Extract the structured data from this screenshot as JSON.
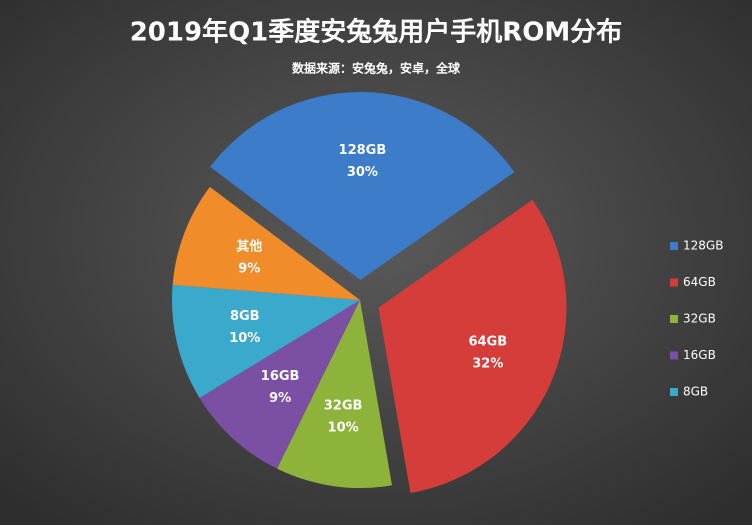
{
  "chart_data": {
    "type": "pie",
    "title": "2019年Q1季度安兔兔用户手机ROM分布",
    "subtitle": "数据来源：安兔兔，安卓，全球",
    "categories": [
      "128GB",
      "64GB",
      "32GB",
      "16GB",
      "8GB",
      "其他"
    ],
    "values": [
      30,
      32,
      10,
      9,
      10,
      9
    ],
    "value_labels": [
      "30%",
      "32%",
      "10%",
      "9%",
      "10%",
      "9%"
    ],
    "colors": [
      "#3d7cc9",
      "#d43d3a",
      "#8db33a",
      "#7b4fa3",
      "#3ba9cc",
      "#f08c2a"
    ],
    "legend": "right"
  }
}
